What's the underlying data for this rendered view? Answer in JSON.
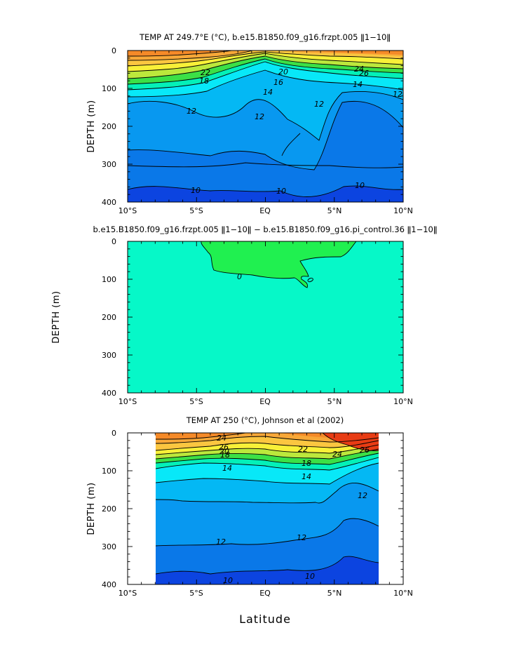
{
  "chart_data": [
    {
      "type": "heatmap",
      "title": "TEMP AT 249.7°E (°C), b.e15.B1850.f09_g16.frzpt.005 ǁ1−10ǁ",
      "ylabel": "DEPTH (m)",
      "xlabel": "",
      "xlim": [
        -10,
        10
      ],
      "ylim": [
        400,
        0
      ],
      "x_ticks": [
        "10°S",
        "5°S",
        "EQ",
        "5°N",
        "10°N"
      ],
      "y_ticks": [
        "0",
        "100",
        "200",
        "300",
        "400"
      ],
      "contour_labels": [
        "22",
        "20",
        "18",
        "16",
        "14",
        "12",
        "10",
        "24",
        "26"
      ],
      "levels": [
        26,
        24,
        22,
        20,
        18,
        16,
        14,
        12,
        10,
        8
      ]
    },
    {
      "type": "heatmap",
      "title": "b.e15.B1850.f09_g16.frzpt.005 ǁ1−10ǁ − b.e15.B1850.f09_g16.pi_control.36 ǁ1−10ǁ",
      "ylabel": "DEPTH (m)",
      "xlabel": "",
      "xlim": [
        -10,
        10
      ],
      "ylim": [
        400,
        0
      ],
      "x_ticks": [
        "10°S",
        "5°S",
        "EQ",
        "5°N",
        "10°N"
      ],
      "y_ticks": [
        "0",
        "100",
        "200",
        "300",
        "400"
      ],
      "contour_labels": [
        "0",
        "0"
      ],
      "levels": [
        0
      ]
    },
    {
      "type": "heatmap",
      "title": "TEMP AT 250 (°C), Johnson et al (2002)",
      "ylabel": "DEPTH (m)",
      "xlabel": "Latitude",
      "xlim": [
        -10,
        10
      ],
      "ylim": [
        400,
        0
      ],
      "data_xlim": [
        -8,
        8.2
      ],
      "x_ticks": [
        "10°S",
        "5°S",
        "EQ",
        "5°N",
        "10°N"
      ],
      "y_ticks": [
        "0",
        "100",
        "200",
        "300",
        "400"
      ],
      "contour_labels": [
        "24",
        "26",
        "20",
        "18",
        "22",
        "18",
        "24",
        "26",
        "14",
        "14",
        "12",
        "12",
        "12",
        "10",
        "10"
      ],
      "levels": [
        26,
        24,
        22,
        20,
        18,
        16,
        14,
        12,
        10,
        8
      ]
    }
  ],
  "colors": {
    "c_orange_dark": "#ee6418",
    "c_orange": "#f58a28",
    "c_orange_light": "#f8a838",
    "c_yellow_orange": "#fbc640",
    "c_yellow": "#f8f038",
    "c_yellow_green": "#bce83c",
    "c_green": "#3ce046",
    "c_cyan_green": "#04f0b8",
    "c_cyan": "#08e8f8",
    "c_sky": "#04b8f4",
    "c_blue_light": "#0898f0",
    "c_blue": "#0a78e8",
    "c_blue_dark": "#0c44e0",
    "c_navy": "#0c28c8",
    "c_red": "#e83c14",
    "c_diff_bg": "#06f8c8",
    "c_diff_pos": "#20f050"
  }
}
